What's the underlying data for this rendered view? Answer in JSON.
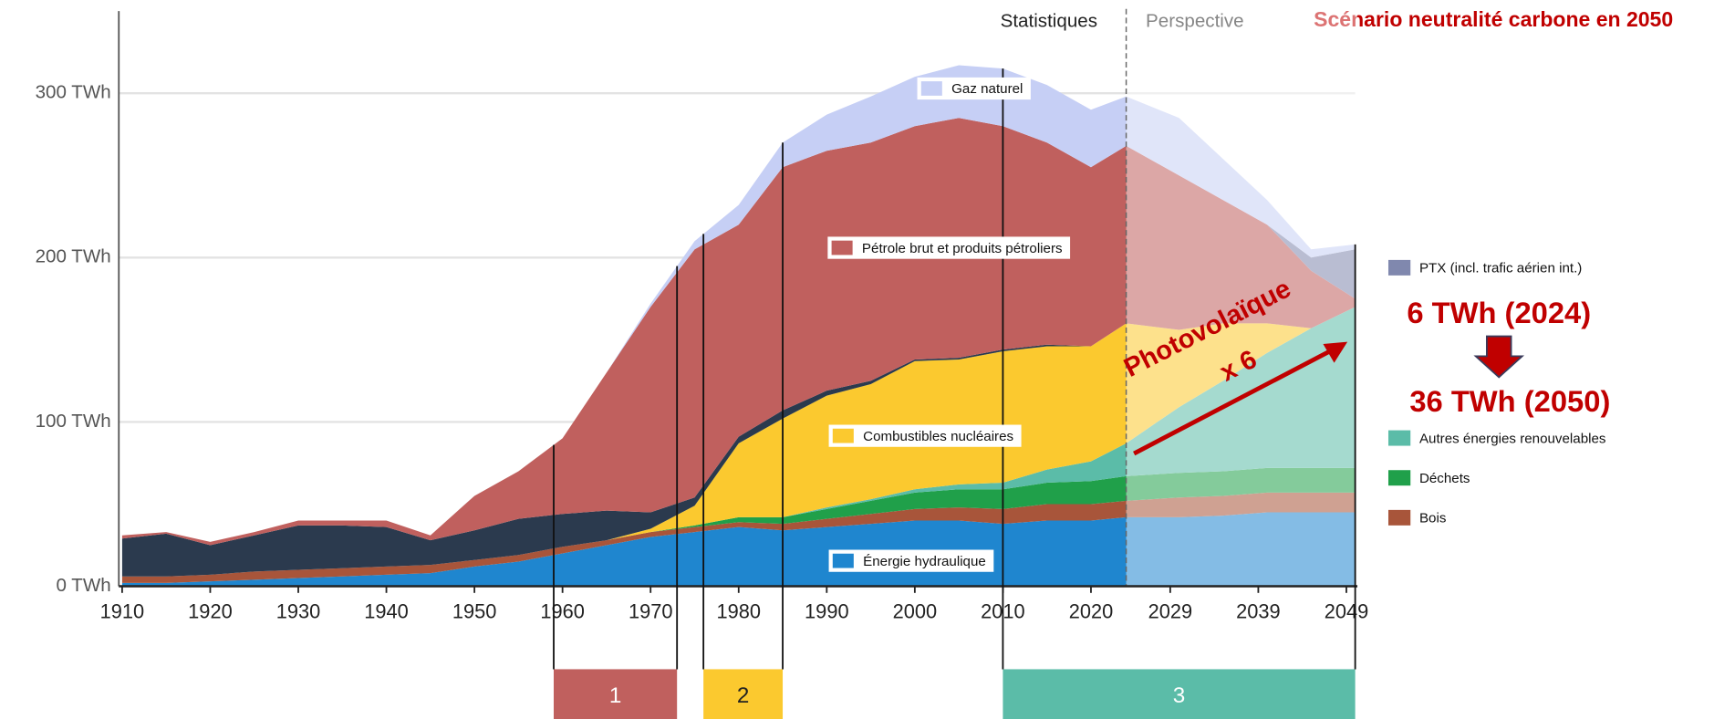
{
  "chart_data": {
    "type": "stacked_area",
    "header_left": "Statistiques",
    "header_right": "Perspective",
    "title": "Scénario neutralité carbone en 2050",
    "projection_start": 2024,
    "annotations": {
      "pv_line1": "Photovolaïque",
      "pv_line2": "x 6",
      "pv_2024": "6 TWh (2024)",
      "pv_2050": "36 TWh (2050)"
    },
    "x": [
      1910,
      1915,
      1920,
      1925,
      1930,
      1935,
      1940,
      1945,
      1950,
      1955,
      1960,
      1965,
      1970,
      1975,
      1980,
      1985,
      1990,
      1995,
      2000,
      2005,
      2010,
      2015,
      2020,
      2024,
      2030,
      2035,
      2040,
      2045,
      2050
    ],
    "xlim": [
      1910,
      2050
    ],
    "xticks": [
      1910,
      1920,
      1930,
      1940,
      1950,
      1960,
      1970,
      1980,
      1990,
      2000,
      2010,
      2020,
      2029,
      2039,
      2049
    ],
    "ylim": [
      0,
      350
    ],
    "yticks": [
      {
        "value": 0,
        "label": "0 TWh"
      },
      {
        "value": 100,
        "label": "100 TWh"
      },
      {
        "value": 200,
        "label": "200 TWh"
      },
      {
        "value": 300,
        "label": "300 TWh"
      }
    ],
    "grid": true,
    "series": [
      {
        "name": "Énergie hydraulique",
        "color": "#1f86cf",
        "values": [
          2,
          2,
          3,
          4,
          5,
          6,
          7,
          8,
          12,
          15,
          20,
          25,
          30,
          33,
          36,
          34,
          36,
          38,
          40,
          40,
          38,
          40,
          40,
          42,
          42,
          43,
          45,
          45,
          45
        ]
      },
      {
        "name": "Bois",
        "color": "#a8553a",
        "values": [
          4,
          4,
          4,
          5,
          5,
          5,
          5,
          5,
          4,
          4,
          4,
          3,
          3,
          3,
          3,
          4,
          5,
          6,
          7,
          8,
          9,
          10,
          10,
          10,
          12,
          12,
          12,
          12,
          12
        ]
      },
      {
        "name": "Déchets",
        "color": "#20a04a",
        "values": [
          0,
          0,
          0,
          0,
          0,
          0,
          0,
          0,
          0,
          0,
          0,
          0,
          0,
          1,
          3,
          4,
          6,
          8,
          10,
          11,
          12,
          13,
          14,
          15,
          15,
          15,
          15,
          15,
          15
        ]
      },
      {
        "name": "Autres énergies renouvelables",
        "color": "#5bbca8",
        "values": [
          0,
          0,
          0,
          0,
          0,
          0,
          0,
          0,
          0,
          0,
          0,
          0,
          0,
          0,
          0,
          0,
          1,
          1,
          2,
          3,
          4,
          8,
          12,
          20,
          40,
          55,
          70,
          85,
          98
        ]
      },
      {
        "name": "Combustibles nucléaires",
        "color": "#fbc92f",
        "values": [
          0,
          0,
          0,
          0,
          0,
          0,
          0,
          0,
          0,
          0,
          0,
          0,
          2,
          12,
          45,
          60,
          68,
          70,
          78,
          76,
          80,
          75,
          70,
          73,
          47,
          35,
          18,
          0,
          0
        ]
      },
      {
        "name": null,
        "color": "#2b3a4e",
        "values": [
          23,
          26,
          18,
          22,
          27,
          26,
          24,
          15,
          18,
          22,
          20,
          18,
          10,
          5,
          4,
          5,
          3,
          2,
          1,
          1,
          1,
          1,
          0,
          0,
          0,
          0,
          0,
          0,
          0
        ]
      },
      {
        "name": "Pétrole brut et produits pétroliers",
        "color": "#c0605e",
        "values": [
          2,
          1,
          2,
          2,
          3,
          3,
          4,
          3,
          21,
          29,
          46,
          84,
          125,
          151,
          129,
          148,
          146,
          145,
          142,
          146,
          136,
          123,
          109,
          108,
          94,
          75,
          60,
          35,
          5
        ]
      },
      {
        "name": "PTX (incl. trafic aérien int.)",
        "color": "#8088ae",
        "values": [
          0,
          0,
          0,
          0,
          0,
          0,
          0,
          0,
          0,
          0,
          0,
          0,
          0,
          0,
          0,
          0,
          0,
          0,
          0,
          0,
          0,
          0,
          0,
          0,
          0,
          0,
          0,
          8,
          30
        ]
      },
      {
        "name": "Gaz naturel",
        "color": "#c6cff5",
        "values": [
          0,
          0,
          0,
          0,
          0,
          0,
          0,
          0,
          0,
          0,
          0,
          0,
          2,
          5,
          12,
          15,
          22,
          28,
          30,
          32,
          35,
          35,
          35,
          30,
          35,
          25,
          15,
          5,
          3
        ]
      }
    ],
    "periods": [
      {
        "label": "1",
        "start": 1959,
        "end": 1973,
        "color": "#c0605e"
      },
      {
        "label": "2",
        "start": 1976,
        "end": 1985,
        "color": "#fbc92f"
      },
      {
        "label": "3",
        "start": 2010,
        "end": 2050,
        "color": "#5bbca8"
      }
    ]
  }
}
